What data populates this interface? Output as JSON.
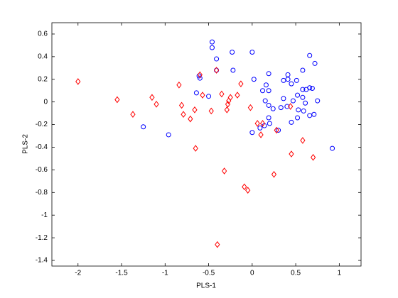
{
  "chart_data": {
    "type": "scatter",
    "xlabel": "PLS-1",
    "ylabel": "PLS-2",
    "xlim": [
      -2.3,
      1.25
    ],
    "ylim": [
      -1.45,
      0.7
    ],
    "xticks": [
      -2,
      -1.5,
      -1,
      -0.5,
      0,
      0.5,
      1
    ],
    "yticks": [
      -1.4,
      -1.2,
      -1,
      -0.8,
      -0.6,
      -0.4,
      -0.2,
      0,
      0.2,
      0.4,
      0.6
    ],
    "series": [
      {
        "color": "#0000ff",
        "marker": "circle",
        "x": [
          -0.46,
          -0.46,
          -0.23,
          0,
          -0.41,
          0.66,
          0.72,
          -0.41,
          -0.22,
          -0.61,
          -0.6,
          0.02,
          0.19,
          0.41,
          0.41,
          0.36,
          0.45,
          0.51,
          0.58,
          0.16,
          0.12,
          0.19,
          0.58,
          0.62,
          0.66,
          0.69,
          0.52,
          0.58,
          0.36,
          0.47,
          0.75,
          0.61,
          0.4,
          0.33,
          0.24,
          0.53,
          0.59,
          0.71,
          0.66,
          0.52,
          0.45,
          0.19,
          0.2,
          0.14,
          0.09,
          0,
          0.3,
          -0.64,
          -0.5,
          0.15,
          0.19,
          -1.25,
          -0.96,
          0.92
        ],
        "y": [
          0.53,
          0.48,
          0.44,
          0.44,
          0.38,
          0.41,
          0.34,
          0.28,
          0.28,
          0.23,
          0.21,
          0.2,
          0.25,
          0.24,
          0.2,
          0.19,
          0.16,
          0.19,
          0.28,
          0.15,
          0.1,
          0.1,
          0.11,
          0.11,
          0.125,
          0.12,
          0.06,
          0.04,
          0.03,
          0.01,
          0.01,
          -0.01,
          -0.04,
          -0.05,
          -0.06,
          -0.07,
          -0.08,
          -0.11,
          -0.12,
          -0.14,
          -0.18,
          -0.14,
          -0.19,
          -0.21,
          -0.23,
          -0.27,
          -0.25,
          0.08,
          0.05,
          0.01,
          -0.03,
          -0.22,
          -0.29,
          -0.41
        ]
      },
      {
        "color": "#ff0000",
        "marker": "diamond",
        "x": [
          -2,
          -1.55,
          -1.37,
          -1.15,
          -1.1,
          -0.84,
          -0.81,
          -0.79,
          -0.66,
          -0.71,
          -0.65,
          -0.6,
          -0.57,
          -0.47,
          -0.41,
          -0.35,
          -0.27,
          -0.29,
          -0.28,
          -0.25,
          -0.17,
          -0.13,
          -0.02,
          -0.32,
          -0.09,
          -0.05,
          -0.4,
          0.06,
          0.1,
          0.12,
          0.28,
          0.25,
          0.45,
          0.58,
          0.7,
          0.44
        ],
        "y": [
          0.18,
          0.02,
          -0.11,
          0.04,
          -0.02,
          0.15,
          -0.03,
          -0.11,
          -0.07,
          -0.15,
          -0.41,
          0.24,
          0.06,
          -0.08,
          0.28,
          0.07,
          0.01,
          -0.07,
          -0.02,
          0.04,
          0.06,
          0.16,
          -0.05,
          -0.61,
          -0.75,
          -0.78,
          -1.26,
          -0.19,
          -0.29,
          -0.19,
          -0.25,
          -0.64,
          -0.46,
          -0.34,
          -0.49,
          -0.04
        ]
      }
    ]
  }
}
